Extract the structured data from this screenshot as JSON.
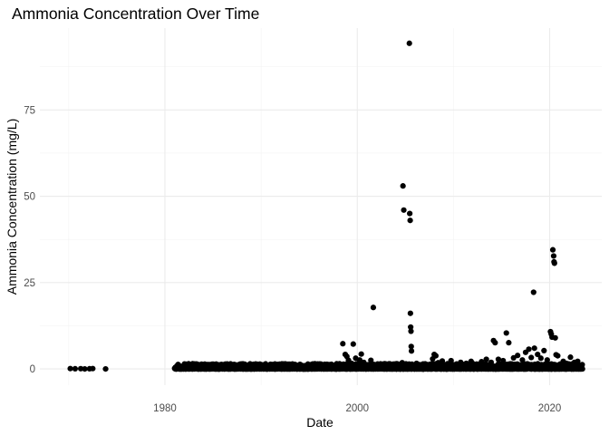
{
  "chart_data": {
    "type": "scatter",
    "title": "Ammonia Concentration Over Time",
    "xlabel": "Date",
    "ylabel": "Ammonia Concentration (mg/L)",
    "x_type": "date",
    "xlim": [
      "1967-01-01",
      "2025-06-01"
    ],
    "ylim": [
      -4.7,
      98.7
    ],
    "x_ticks": [
      {
        "value": "1980-01-01",
        "label": "1980"
      },
      {
        "value": "2000-01-01",
        "label": "2000"
      },
      {
        "value": "2020-01-01",
        "label": "2020"
      }
    ],
    "y_ticks": [
      {
        "value": 0,
        "label": "0"
      },
      {
        "value": 25,
        "label": "25"
      },
      {
        "value": 50,
        "label": "50"
      },
      {
        "value": 75,
        "label": "75"
      }
    ],
    "grid": true,
    "legend": "none",
    "point_color": "#000000",
    "background": "#ffffff",
    "points": [
      [
        "1970-03-01",
        0.1
      ],
      [
        "1970-09-01",
        0.05
      ],
      [
        "1971-04-01",
        0.08
      ],
      [
        "1971-09-01",
        0.0
      ],
      [
        "1972-03-01",
        0.05
      ],
      [
        "1972-07-01",
        0.1
      ],
      [
        "1973-11-01",
        0.0
      ],
      [
        "1981-06-01",
        0.2
      ],
      [
        "1981-11-01",
        0.6
      ],
      [
        "1982-05-01",
        0.3
      ],
      [
        "1982-10-01",
        0.9
      ],
      [
        "1983-04-01",
        0.4
      ],
      [
        "1983-09-01",
        0.8
      ],
      [
        "1984-03-01",
        0.5
      ],
      [
        "1984-08-01",
        1.0
      ],
      [
        "1985-02-01",
        0.3
      ],
      [
        "1985-07-01",
        0.7
      ],
      [
        "1986-01-01",
        0.4
      ],
      [
        "1986-08-01",
        1.1
      ],
      [
        "1987-03-01",
        0.2
      ],
      [
        "1987-10-01",
        0.6
      ],
      [
        "1988-04-01",
        0.3
      ],
      [
        "1988-11-01",
        0.9
      ],
      [
        "1989-05-01",
        0.2
      ],
      [
        "1989-12-01",
        0.5
      ],
      [
        "1990-06-01",
        0.4
      ],
      [
        "1991-02-01",
        0.3
      ],
      [
        "1991-09-01",
        0.6
      ],
      [
        "1992-04-01",
        0.2
      ],
      [
        "1992-11-01",
        0.5
      ],
      [
        "1993-06-01",
        0.3
      ],
      [
        "1994-01-01",
        0.7
      ],
      [
        "1994-09-01",
        0.2
      ],
      [
        "1995-04-01",
        1.2
      ],
      [
        "1995-11-01",
        0.4
      ],
      [
        "1996-06-01",
        0.8
      ],
      [
        "1997-01-01",
        0.3
      ],
      [
        "1997-08-01",
        0.9
      ],
      [
        "1998-03-01",
        1.5
      ],
      [
        "1998-07-01",
        7.3
      ],
      [
        "1998-10-01",
        4.2
      ],
      [
        "1998-12-01",
        3.6
      ],
      [
        "1999-02-01",
        2.5
      ],
      [
        "1999-06-01",
        1.6
      ],
      [
        "1999-08-01",
        7.2
      ],
      [
        "1999-11-01",
        3.1
      ],
      [
        "2000-04-01",
        2.6
      ],
      [
        "2000-06-01",
        4.3
      ],
      [
        "2000-09-01",
        1.9
      ],
      [
        "2001-01-01",
        1.2
      ],
      [
        "2001-06-01",
        2.5
      ],
      [
        "2001-09-01",
        17.8
      ],
      [
        "2002-03-01",
        1.1
      ],
      [
        "2002-09-01",
        0.8
      ],
      [
        "2003-05-01",
        0.6
      ],
      [
        "2003-10-01",
        1.4
      ],
      [
        "2004-04-01",
        0.9
      ],
      [
        "2004-09-01",
        1.8
      ],
      [
        "2004-10-01",
        53.0
      ],
      [
        "2004-11-01",
        46.0
      ],
      [
        "2005-06-01",
        94.3
      ],
      [
        "2005-06-15",
        45.0
      ],
      [
        "2005-07-01",
        43.0
      ],
      [
        "2005-07-10",
        16.1
      ],
      [
        "2005-07-20",
        12.1
      ],
      [
        "2005-08-01",
        10.9
      ],
      [
        "2005-08-10",
        6.5
      ],
      [
        "2005-08-20",
        5.2
      ],
      [
        "2005-09-01",
        1.3
      ],
      [
        "2006-03-01",
        1.6
      ],
      [
        "2006-09-01",
        1.0
      ],
      [
        "2007-04-01",
        1.2
      ],
      [
        "2007-11-01",
        2.9
      ],
      [
        "2008-01-01",
        4.2
      ],
      [
        "2008-03-01",
        3.8
      ],
      [
        "2008-06-01",
        1.8
      ],
      [
        "2008-11-01",
        2.3
      ],
      [
        "2009-05-01",
        1.3
      ],
      [
        "2009-10-01",
        2.4
      ],
      [
        "2010-04-01",
        1.1
      ],
      [
        "2010-10-01",
        1.9
      ],
      [
        "2011-05-01",
        1.6
      ],
      [
        "2011-11-01",
        2.2
      ],
      [
        "2012-06-01",
        1.4
      ],
      [
        "2012-12-01",
        2.1
      ],
      [
        "2013-06-01",
        2.8
      ],
      [
        "2013-12-01",
        1.9
      ],
      [
        "2014-03-01",
        8.2
      ],
      [
        "2014-05-01",
        7.6
      ],
      [
        "2014-09-01",
        2.8
      ],
      [
        "2015-03-01",
        2.4
      ],
      [
        "2015-07-01",
        10.4
      ],
      [
        "2015-10-01",
        7.6
      ],
      [
        "2016-04-01",
        3.2
      ],
      [
        "2016-09-01",
        3.9
      ],
      [
        "2017-03-01",
        2.6
      ],
      [
        "2017-07-01",
        4.8
      ],
      [
        "2017-11-01",
        5.7
      ],
      [
        "2018-02-01",
        3.3
      ],
      [
        "2018-05-01",
        22.2
      ],
      [
        "2018-06-01",
        6.0
      ],
      [
        "2018-10-01",
        4.2
      ],
      [
        "2019-02-01",
        3.1
      ],
      [
        "2019-06-01",
        5.3
      ],
      [
        "2019-10-01",
        2.6
      ],
      [
        "2020-02-01",
        10.8
      ],
      [
        "2020-03-01",
        10.1
      ],
      [
        "2020-04-01",
        9.2
      ],
      [
        "2020-05-01",
        34.5
      ],
      [
        "2020-06-01",
        32.7
      ],
      [
        "2020-06-15",
        31.0
      ],
      [
        "2020-07-01",
        30.6
      ],
      [
        "2020-08-01",
        9.0
      ],
      [
        "2020-09-01",
        4.1
      ],
      [
        "2020-11-01",
        3.8
      ],
      [
        "2021-02-01",
        1.4
      ],
      [
        "2021-06-01",
        2.2
      ],
      [
        "2021-10-01",
        1.6
      ],
      [
        "2022-03-01",
        3.4
      ],
      [
        "2022-08-01",
        1.9
      ],
      [
        "2022-12-01",
        2.2
      ],
      [
        "2023-03-01",
        0.8
      ],
      [
        "2023-05-01",
        0.3
      ]
    ],
    "dense_band": {
      "start": "1981-01-01",
      "end": "2023-06-01",
      "count": 3200,
      "y_range": [
        0,
        1.5
      ]
    }
  }
}
